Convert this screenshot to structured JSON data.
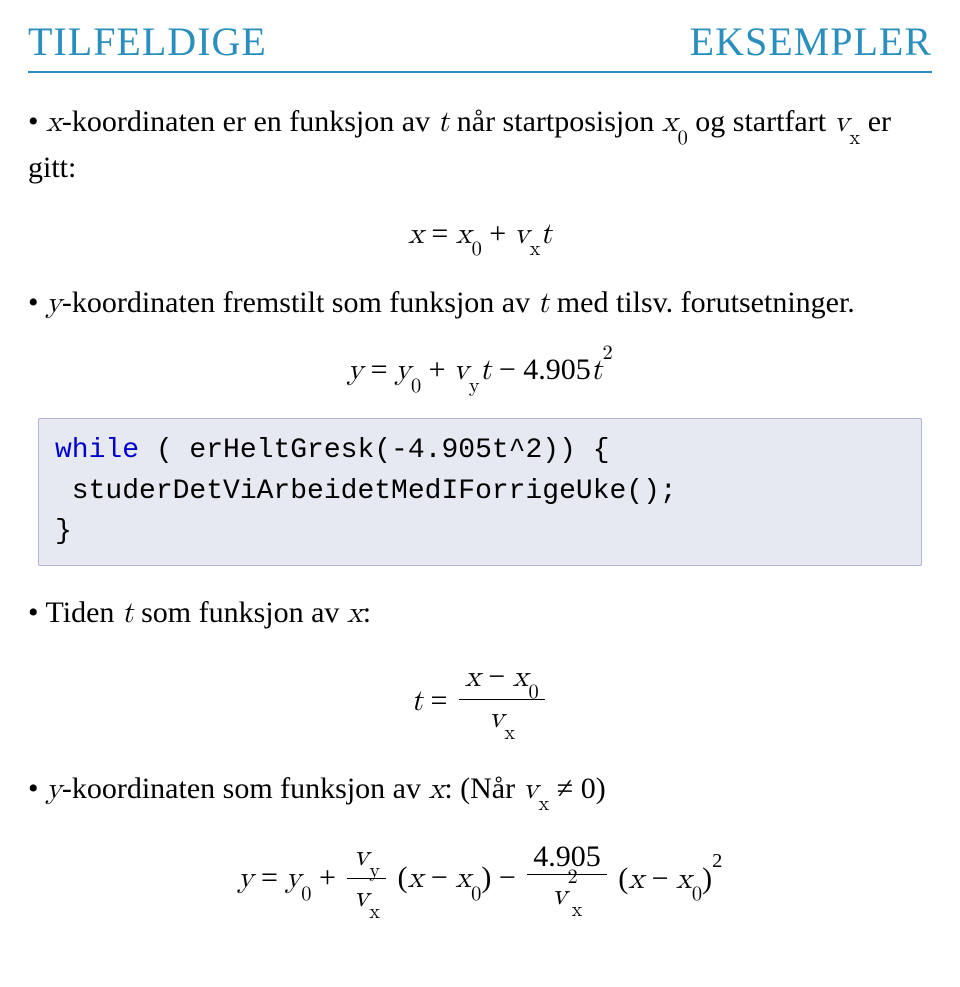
{
  "colors": {
    "title": "#2a8fbd",
    "rule": "#2a8fbd",
    "text": "#000000",
    "code_bg": "#e7e9f2",
    "code_border": "#b5b9d0",
    "keyword": "#0000cc"
  },
  "header": {
    "left": "TILFELDIGE",
    "right": "EKSEMPLER"
  },
  "items": [
    {
      "text_parts": {
        "prefix": "x",
        "body1": "-koordinaten er en funksjon av ",
        "tvar": "t",
        "body2": " når startposisjon ",
        "x0": "x",
        "x0sub": "0",
        "body3": " og startfart ",
        "vx": "v",
        "vxsub": "x",
        "body4": " er gitt:"
      },
      "eq": {
        "lhs_var": "x",
        "eq": " = ",
        "r1": "x",
        "r1sub": "0",
        "plus": " + ",
        "r2": "v",
        "r2sub": "x",
        "r3": "t"
      }
    },
    {
      "text_parts": {
        "prefix": "y",
        "body1": "-koordinaten fremstilt som funksjon av ",
        "tvar": "t",
        "body2": " med tilsv. forutsetninger."
      },
      "eq": {
        "lhs_var": "y",
        "eq": " = ",
        "r1": "y",
        "r1sub": "0",
        "plus": " + ",
        "r2": "v",
        "r2sub": "y",
        "r3": "t",
        "minus": " − ",
        "coef": "4.905",
        "r4": "t",
        "r4sup": "2"
      },
      "code": {
        "kw_while": "while",
        "line1_rest": " ( erHeltGresk(-4.905t^2)) {",
        "line2": " studerDetViArbeidetMedIForrigeUke();",
        "line3": "}"
      }
    },
    {
      "text_parts": {
        "body1": "Tiden ",
        "tvar": "t",
        "body2": " som funksjon av ",
        "xvar": "x",
        "body3": ":"
      },
      "eq": {
        "lhs_var": "t",
        "eq": " = ",
        "num1": "x",
        "minus": " − ",
        "num2": "x",
        "num2sub": "0",
        "den": "v",
        "densub": "x"
      }
    },
    {
      "text_parts": {
        "prefix": "y",
        "body1": "-koordinaten som funksjon av ",
        "xvar": "x",
        "body2": ": (Når ",
        "vx": "v",
        "vxsub": "x",
        "neq": " ≠ ",
        "zero": "0",
        "body3": ")"
      },
      "eq": {
        "lhs_var": "y",
        "eq": " = ",
        "r1": "y",
        "r1sub": "0",
        "plus": " + ",
        "frac1_num": "v",
        "frac1_numsub": "y",
        "frac1_den": "v",
        "frac1_densub": "x",
        "paren1a": "(",
        "x": "x",
        "minus": " − ",
        "x0": "x",
        "x0sub": "0",
        "paren1b": ")",
        "minus2": " − ",
        "frac2_num": "4.905",
        "frac2_den": "v",
        "frac2_densub": "x",
        "frac2_densup": "2",
        "paren2a": "(",
        "paren2b": ")",
        "outer_sup": "2"
      }
    }
  ]
}
